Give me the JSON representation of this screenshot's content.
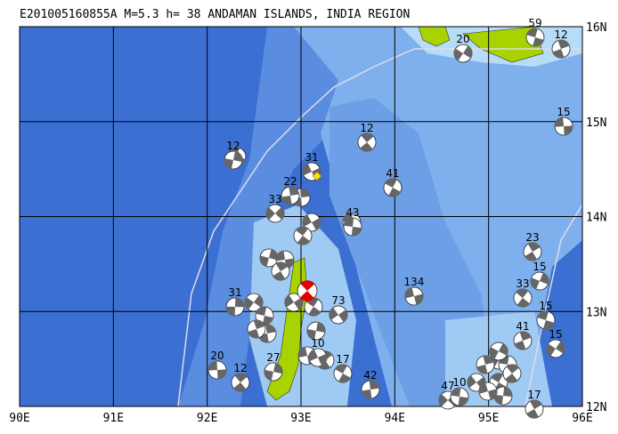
{
  "title": "E201005160855A M=5.3 h= 38 ANDAMAN ISLANDS, INDIA REGION",
  "map": {
    "lon_labels": [
      "90E",
      "91E",
      "92E",
      "93E",
      "94E",
      "95E",
      "96E"
    ],
    "lat_labels": [
      "16N",
      "15N",
      "14N",
      "13N",
      "12N"
    ],
    "events": [
      59,
      12,
      20,
      15,
      12,
      12,
      31,
      41,
      22,
      33,
      43,
      23,
      15,
      134,
      33,
      31,
      73,
      15,
      41,
      15,
      20,
      12,
      27,
      10,
      17,
      42,
      47,
      10,
      17
    ]
  }
}
